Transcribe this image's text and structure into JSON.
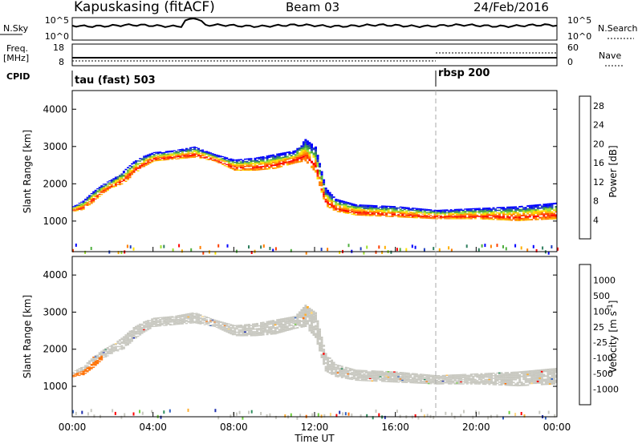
{
  "header": {
    "station": "Kapuskasing (fitACF)",
    "beam": "Beam 03",
    "date": "24/Feb/2016"
  },
  "top_strip": {
    "nsky_label": "N.Sky",
    "nsky_ticks": [
      "10^5",
      "10^0"
    ],
    "nsearch_label": "N.Search",
    "nsearch_ticks": [
      "10^5",
      "10^0"
    ],
    "freq_label": "Freq.",
    "freq_unit": "[MHz]",
    "freq_ticks": [
      "18",
      "8"
    ],
    "nave_ticks": [
      "60",
      "0"
    ],
    "nave_label": "Nave",
    "cpid_label": "CPID",
    "cpid_segments": [
      {
        "label": "tau (fast) 503",
        "start_hour": 0
      },
      {
        "label": "rbsp 200",
        "start_hour": 18
      }
    ]
  },
  "colors": {
    "power_scale": [
      "#0000ff",
      "#1f3fbf",
      "#2f7f5f",
      "#4faf3f",
      "#9fdf2f",
      "#ffdf00",
      "#ffaf00",
      "#ff7f00",
      "#ff3f00",
      "#ff0000"
    ],
    "velocity_scale": [
      "#ff0000",
      "#ff6f00",
      "#ffaf2f",
      "#ffd77f",
      "#c8c8c0",
      "#c8c8c0",
      "#6fcf3f",
      "#2f8f5f",
      "#2f5fbf",
      "#1f2faf"
    ],
    "ground_scatter": "#c8c8c0"
  },
  "chart_data": [
    {
      "type": "heatmap",
      "name": "power",
      "xlabel": "",
      "ylabel": "Slant Range [km]",
      "xlim": [
        0,
        24
      ],
      "ylim": [
        180,
        4500
      ],
      "yticks": [
        "1000",
        "2000",
        "3000",
        "4000"
      ],
      "colorbar": {
        "label": "Power [dB]",
        "ticks": [
          "4",
          "8",
          "12",
          "16",
          "20",
          "24",
          "28"
        ],
        "range": [
          0,
          30
        ]
      },
      "bands": [
        {
          "x": [
            0,
            0.5,
            1,
            1.5,
            2,
            2.5,
            3,
            3.5,
            4,
            5,
            6,
            7,
            8,
            9,
            10,
            11,
            11.5,
            12,
            12.5,
            13,
            14,
            16,
            18,
            20,
            22,
            24
          ],
          "low": [
            1250,
            1300,
            1500,
            1750,
            1900,
            2000,
            2250,
            2450,
            2600,
            2650,
            2700,
            2600,
            2350,
            2350,
            2400,
            2550,
            2600,
            2300,
            1400,
            1250,
            1150,
            1100,
            1050,
            1050,
            1000,
            1050
          ],
          "high": [
            1400,
            1550,
            1800,
            2000,
            2150,
            2350,
            2600,
            2750,
            2850,
            2900,
            3000,
            2800,
            2650,
            2700,
            2800,
            2900,
            3200,
            3000,
            1900,
            1600,
            1450,
            1400,
            1300,
            1350,
            1400,
            1500
          ],
          "power": 18
        }
      ]
    },
    {
      "type": "heatmap",
      "name": "velocity",
      "xlabel": "Time UT",
      "ylabel": "Slant Range [km]",
      "xlim": [
        0,
        24
      ],
      "ylim": [
        180,
        4500
      ],
      "xticks": [
        "00:00",
        "04:00",
        "08:00",
        "12:00",
        "16:00",
        "20:00",
        "00:00"
      ],
      "yticks": [
        "1000",
        "2000",
        "3000",
        "4000"
      ],
      "colorbar": {
        "label": "Velocity [m s^-1]",
        "ticks": [
          "1000",
          "500",
          "100",
          "25",
          "-25",
          "-100",
          "-500",
          "-1000"
        ]
      }
    }
  ]
}
